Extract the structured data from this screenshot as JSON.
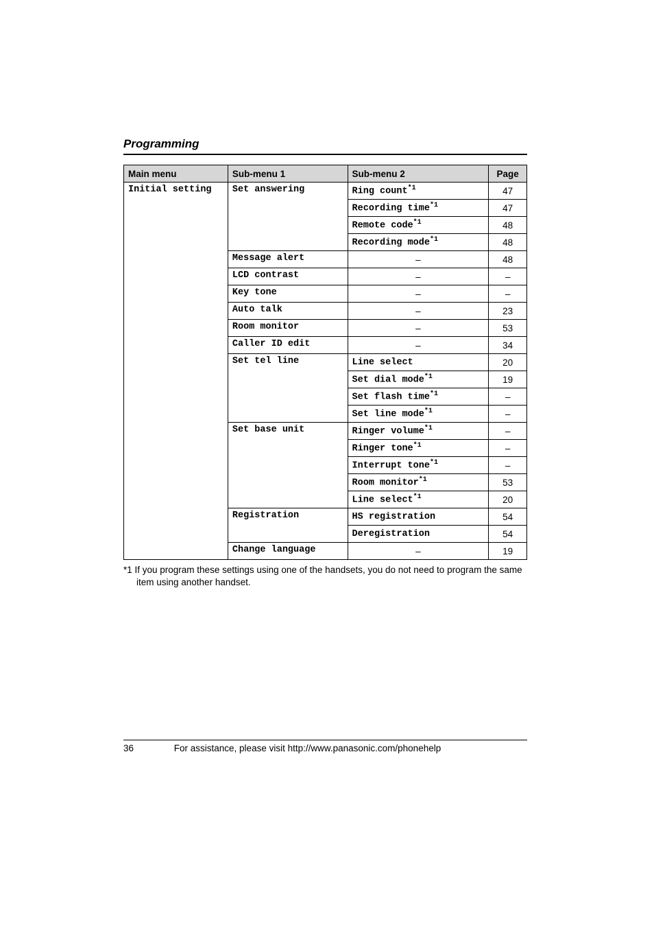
{
  "section_title": "Programming",
  "headers": {
    "main": "Main menu",
    "sub1": "Sub-menu 1",
    "sub2": "Sub-menu 2",
    "page": "Page"
  },
  "groups": [
    {
      "sub1": "Set answering",
      "sub1_rows": 4,
      "rows": [
        {
          "sub2": "Ring count",
          "sup": "*1",
          "page": "47"
        },
        {
          "sub2": "Recording time",
          "sup": "*1",
          "page": "47"
        },
        {
          "sub2": "Remote code",
          "sup": "*1",
          "page": "48"
        },
        {
          "sub2": "Recording mode",
          "sup": "*1",
          "page": "48"
        }
      ]
    },
    {
      "sub1": "Message alert",
      "sub1_rows": 1,
      "rows": [
        {
          "sub2": "–",
          "dash": true,
          "page": "48"
        }
      ]
    },
    {
      "sub1": "LCD contrast",
      "sub1_rows": 1,
      "rows": [
        {
          "sub2": "–",
          "dash": true,
          "page": "–"
        }
      ]
    },
    {
      "sub1": "Key tone",
      "sub1_rows": 1,
      "rows": [
        {
          "sub2": "–",
          "dash": true,
          "page": "–"
        }
      ]
    },
    {
      "sub1": "Auto talk",
      "sub1_rows": 1,
      "rows": [
        {
          "sub2": "–",
          "dash": true,
          "page": "23"
        }
      ]
    },
    {
      "sub1": "Room monitor",
      "sub1_rows": 1,
      "rows": [
        {
          "sub2": "–",
          "dash": true,
          "page": "53"
        }
      ]
    },
    {
      "sub1": "Caller ID edit",
      "sub1_rows": 1,
      "rows": [
        {
          "sub2": "–",
          "dash": true,
          "page": "34"
        }
      ]
    },
    {
      "sub1": "Set tel line",
      "sub1_rows": 4,
      "rows": [
        {
          "sub2": "Line select",
          "page": "20"
        },
        {
          "sub2": "Set dial mode",
          "sup": "*1",
          "page": "19"
        },
        {
          "sub2": "Set flash time",
          "sup": "*1",
          "page": "–"
        },
        {
          "sub2": "Set line mode",
          "sup": "*1",
          "page": "–"
        }
      ]
    },
    {
      "sub1": "Set base unit",
      "sub1_rows": 5,
      "rows": [
        {
          "sub2": "Ringer volume",
          "sup": "*1",
          "page": "–"
        },
        {
          "sub2": "Ringer tone",
          "sup": "*1",
          "page": "–"
        },
        {
          "sub2": "Interrupt tone",
          "sup": "*1",
          "page": "–"
        },
        {
          "sub2": "Room monitor",
          "sup": "*1",
          "page": "53"
        },
        {
          "sub2": "Line select",
          "sup": "*1",
          "page": "20"
        }
      ]
    },
    {
      "sub1": "Registration",
      "sub1_rows": 2,
      "rows": [
        {
          "sub2": "HS registration",
          "page": "54"
        },
        {
          "sub2": "Deregistration",
          "page": "54"
        }
      ]
    },
    {
      "sub1": "Change language",
      "sub1_rows": 1,
      "rows": [
        {
          "sub2": "–",
          "dash": true,
          "page": "19"
        }
      ]
    }
  ],
  "main_menu_label": "Initial setting",
  "footnote": "*1 If you program these settings using one of the handsets, you do not need to program the same item using another handset.",
  "footer": {
    "page": "36",
    "text": "For assistance, please visit http://www.panasonic.com/phonehelp"
  }
}
